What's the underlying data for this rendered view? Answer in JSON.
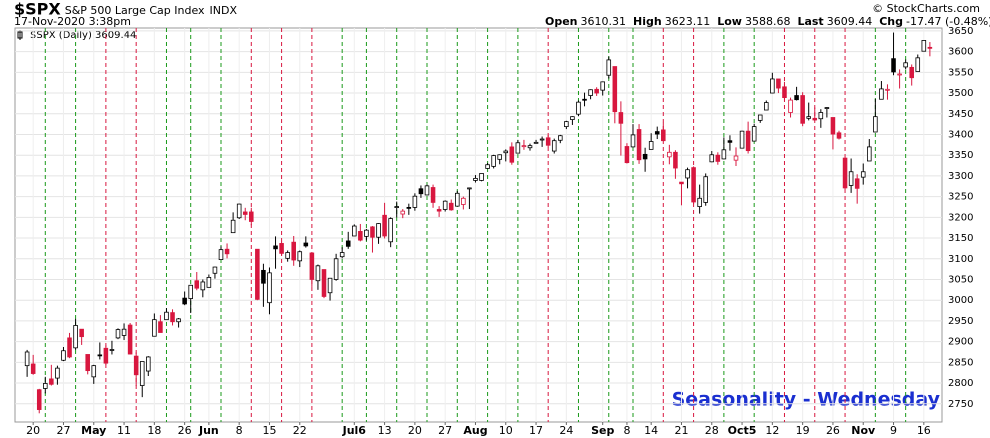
{
  "chart_data": {
    "type": "candlestick",
    "symbol": "$SPX",
    "name": "S&P 500 Large Cap Index",
    "exchange": "INDX",
    "timestamp": "17-Nov-2020 3:38pm",
    "quote": [
      {
        "label": "Open",
        "value": "3610.31"
      },
      {
        "label": "High",
        "value": "3623.11"
      },
      {
        "label": "Low",
        "value": "3588.68"
      },
      {
        "label": "Last",
        "value": "3609.44"
      },
      {
        "label": "Chg",
        "value": "-17.47 (-0.48%)"
      }
    ],
    "credit": "© StockCharts.com",
    "legend": "$SPX (Daily) 3609.44",
    "annotation": "Seasonality - Wednesday",
    "ylim": [
      2706,
      3657
    ],
    "yticks": [
      2750,
      2800,
      2850,
      2900,
      2950,
      3000,
      3050,
      3100,
      3150,
      3200,
      3250,
      3300,
      3350,
      3400,
      3450,
      3500,
      3550,
      3600,
      3650
    ],
    "xlim": [
      -2,
      151
    ],
    "xticks": [
      {
        "value": 1,
        "label": "20"
      },
      {
        "value": 6,
        "label": "27"
      },
      {
        "value": 11,
        "label": "May"
      },
      {
        "value": 16,
        "label": "11"
      },
      {
        "value": 21,
        "label": "18"
      },
      {
        "value": 26,
        "label": "26"
      },
      {
        "value": 30,
        "label": "Jun"
      },
      {
        "value": 35,
        "label": "8"
      },
      {
        "value": 40,
        "label": "15"
      },
      {
        "value": 45,
        "label": "22"
      },
      {
        "value": 54,
        "label": "Jul6"
      },
      {
        "value": 59,
        "label": "13"
      },
      {
        "value": 64,
        "label": "20"
      },
      {
        "value": 69,
        "label": "27"
      },
      {
        "value": 74,
        "label": "Aug"
      },
      {
        "value": 79,
        "label": "10"
      },
      {
        "value": 84,
        "label": "17"
      },
      {
        "value": 89,
        "label": "24"
      },
      {
        "value": 95,
        "label": "Sep"
      },
      {
        "value": 99,
        "label": "8"
      },
      {
        "value": 103,
        "label": "14"
      },
      {
        "value": 108,
        "label": "21"
      },
      {
        "value": 113,
        "label": "28"
      },
      {
        "value": 118,
        "label": "Oct5"
      },
      {
        "value": 123,
        "label": "12"
      },
      {
        "value": 128,
        "label": "19"
      },
      {
        "value": 133,
        "label": "26"
      },
      {
        "value": 138,
        "label": "Nov"
      },
      {
        "value": 143,
        "label": "9"
      },
      {
        "value": 148,
        "label": "16"
      }
    ],
    "vlines": [
      3,
      8,
      13,
      18,
      23,
      27,
      32,
      37,
      42,
      47,
      52,
      56,
      61,
      66,
      71,
      76,
      81,
      86,
      91,
      96,
      100,
      105,
      110,
      115,
      120,
      125,
      130,
      135,
      140,
      145
    ],
    "ohlc": [
      [
        2842,
        2880,
        2815,
        2875
      ],
      [
        2846,
        2868,
        2820,
        2823
      ],
      [
        2784,
        2786,
        2727,
        2736
      ],
      [
        2787,
        2815,
        2775,
        2799
      ],
      [
        2810,
        2844,
        2794,
        2797
      ],
      [
        2812,
        2842,
        2796,
        2836
      ],
      [
        2855,
        2887,
        2853,
        2878
      ],
      [
        2909,
        2921,
        2860,
        2863
      ],
      [
        2885,
        2955,
        2880,
        2939
      ],
      [
        2930,
        2930,
        2892,
        2912
      ],
      [
        2869,
        2869,
        2821,
        2830
      ],
      [
        2815,
        2844,
        2798,
        2842
      ],
      [
        2868,
        2898,
        2857,
        2868
      ],
      [
        2884,
        2891,
        2844,
        2848
      ],
      [
        2879,
        2902,
        2869,
        2881
      ],
      [
        2909,
        2932,
        2906,
        2929
      ],
      [
        2915,
        2944,
        2904,
        2930
      ],
      [
        2940,
        2945,
        2869,
        2870
      ],
      [
        2865,
        2874,
        2793,
        2820
      ],
      [
        2794,
        2852,
        2766,
        2852
      ],
      [
        2829,
        2865,
        2817,
        2863
      ],
      [
        2913,
        2968,
        2913,
        2953
      ],
      [
        2948,
        2964,
        2922,
        2922
      ],
      [
        2953,
        2981,
        2953,
        2971
      ],
      [
        2970,
        2978,
        2939,
        2948
      ],
      [
        2948,
        2957,
        2934,
        2955
      ],
      [
        3005,
        3021,
        2988,
        2991
      ],
      [
        3004,
        3037,
        2969,
        3036
      ],
      [
        3047,
        3068,
        3024,
        3029
      ],
      [
        3025,
        3050,
        3007,
        3044
      ],
      [
        3031,
        3062,
        3031,
        3055
      ],
      [
        3065,
        3081,
        3052,
        3080
      ],
      [
        3098,
        3130,
        3098,
        3122
      ],
      [
        3123,
        3137,
        3101,
        3112
      ],
      [
        3163,
        3212,
        3163,
        3193
      ],
      [
        3199,
        3233,
        3196,
        3232
      ],
      [
        3213,
        3223,
        3193,
        3207
      ],
      [
        3213,
        3223,
        3181,
        3190
      ],
      [
        3123,
        3123,
        3000,
        3002
      ],
      [
        3072,
        3088,
        2984,
        3041
      ],
      [
        2994,
        3079,
        2966,
        3066
      ],
      [
        3131,
        3154,
        3076,
        3124
      ],
      [
        3137,
        3141,
        3108,
        3113
      ],
      [
        3101,
        3120,
        3093,
        3115
      ],
      [
        3140,
        3155,
        3083,
        3097
      ],
      [
        3095,
        3120,
        3080,
        3117
      ],
      [
        3138,
        3154,
        3127,
        3131
      ],
      [
        3114,
        3115,
        3032,
        3050
      ],
      [
        3047,
        3086,
        3025,
        3083
      ],
      [
        3074,
        3074,
        3005,
        3009
      ],
      [
        3018,
        3053,
        2999,
        3053
      ],
      [
        3050,
        3112,
        3047,
        3100
      ],
      [
        3105,
        3128,
        3101,
        3115
      ],
      [
        3143,
        3165,
        3124,
        3130
      ],
      [
        3155,
        3183,
        3155,
        3179
      ],
      [
        3166,
        3184,
        3142,
        3145
      ],
      [
        3154,
        3172,
        3144,
        3169
      ],
      [
        3177,
        3179,
        3115,
        3152
      ],
      [
        3152,
        3186,
        3136,
        3185
      ],
      [
        3205,
        3235,
        3149,
        3155
      ],
      [
        3141,
        3200,
        3128,
        3197
      ],
      [
        3225,
        3238,
        3200,
        3226
      ],
      [
        3208,
        3220,
        3198,
        3215
      ],
      [
        3224,
        3233,
        3206,
        3224
      ],
      [
        3224,
        3258,
        3216,
        3251
      ],
      [
        3269,
        3277,
        3247,
        3257
      ],
      [
        3254,
        3279,
        3253,
        3276
      ],
      [
        3272,
        3279,
        3223,
        3236
      ],
      [
        3219,
        3227,
        3201,
        3215
      ],
      [
        3219,
        3241,
        3214,
        3239
      ],
      [
        3234,
        3243,
        3216,
        3218
      ],
      [
        3227,
        3264,
        3227,
        3258
      ],
      [
        3231,
        3250,
        3219,
        3246
      ],
      [
        3270,
        3272,
        3220,
        3271
      ],
      [
        3289,
        3302,
        3284,
        3294
      ],
      [
        3289,
        3306,
        3287,
        3306
      ],
      [
        3318,
        3331,
        3317,
        3327
      ],
      [
        3323,
        3351,
        3318,
        3349
      ],
      [
        3340,
        3352,
        3328,
        3351
      ],
      [
        3356,
        3364,
        3335,
        3360
      ],
      [
        3370,
        3381,
        3327,
        3333
      ],
      [
        3355,
        3387,
        3355,
        3380
      ],
      [
        3372,
        3387,
        3363,
        3373
      ],
      [
        3368,
        3378,
        3361,
        3373
      ],
      [
        3380,
        3387,
        3379,
        3381
      ],
      [
        3388,
        3395,
        3370,
        3389
      ],
      [
        3392,
        3399,
        3369,
        3374
      ],
      [
        3360,
        3390,
        3354,
        3385
      ],
      [
        3386,
        3399,
        3379,
        3397
      ],
      [
        3419,
        3433,
        3413,
        3431
      ],
      [
        3436,
        3444,
        3423,
        3443
      ],
      [
        3449,
        3482,
        3444,
        3478
      ],
      [
        3485,
        3501,
        3468,
        3484
      ],
      [
        3494,
        3509,
        3485,
        3508
      ],
      [
        3509,
        3514,
        3493,
        3500
      ],
      [
        3507,
        3528,
        3494,
        3527
      ],
      [
        3543,
        3588,
        3535,
        3580
      ],
      [
        3564,
        3564,
        3427,
        3455
      ],
      [
        3453,
        3480,
        3349,
        3427
      ],
      [
        3371,
        3379,
        3330,
        3332
      ],
      [
        3370,
        3425,
        3369,
        3399
      ],
      [
        3412,
        3425,
        3329,
        3339
      ],
      [
        3352,
        3368,
        3310,
        3341
      ],
      [
        3364,
        3403,
        3364,
        3383
      ],
      [
        3407,
        3419,
        3389,
        3401
      ],
      [
        3411,
        3428,
        3384,
        3385
      ],
      [
        3346,
        3375,
        3328,
        3357
      ],
      [
        3357,
        3362,
        3293,
        3319
      ],
      [
        3285,
        3285,
        3229,
        3281
      ],
      [
        3295,
        3320,
        3270,
        3315
      ],
      [
        3320,
        3323,
        3232,
        3237
      ],
      [
        3226,
        3279,
        3209,
        3246
      ],
      [
        3236,
        3306,
        3228,
        3298
      ],
      [
        3334,
        3360,
        3333,
        3351
      ],
      [
        3350,
        3357,
        3327,
        3335
      ],
      [
        3341,
        3393,
        3340,
        3363
      ],
      [
        3385,
        3398,
        3361,
        3381
      ],
      [
        3338,
        3369,
        3324,
        3348
      ],
      [
        3367,
        3409,
        3367,
        3408
      ],
      [
        3408,
        3431,
        3354,
        3361
      ],
      [
        3384,
        3426,
        3384,
        3419
      ],
      [
        3434,
        3447,
        3428,
        3447
      ],
      [
        3459,
        3482,
        3459,
        3477
      ],
      [
        3500,
        3549,
        3499,
        3534
      ],
      [
        3534,
        3534,
        3500,
        3512
      ],
      [
        3515,
        3527,
        3481,
        3489
      ],
      [
        3453,
        3489,
        3441,
        3483
      ],
      [
        3494,
        3515,
        3482,
        3484
      ],
      [
        3494,
        3502,
        3420,
        3427
      ],
      [
        3439,
        3477,
        3434,
        3443
      ],
      [
        3439,
        3465,
        3433,
        3435
      ],
      [
        3438,
        3461,
        3416,
        3453
      ],
      [
        3464,
        3466,
        3441,
        3465
      ],
      [
        3441,
        3441,
        3364,
        3401
      ],
      [
        3404,
        3409,
        3388,
        3391
      ],
      [
        3343,
        3343,
        3268,
        3271
      ],
      [
        3277,
        3342,
        3259,
        3310
      ],
      [
        3293,
        3304,
        3233,
        3270
      ],
      [
        3297,
        3330,
        3279,
        3310
      ],
      [
        3336,
        3389,
        3336,
        3370
      ],
      [
        3406,
        3486,
        3405,
        3443
      ],
      [
        3485,
        3529,
        3485,
        3510
      ],
      [
        3508,
        3521,
        3484,
        3509
      ],
      [
        3583,
        3646,
        3543,
        3551
      ],
      [
        3544,
        3557,
        3511,
        3546
      ],
      [
        3563,
        3581,
        3557,
        3573
      ],
      [
        3562,
        3569,
        3518,
        3537
      ],
      [
        3552,
        3593,
        3552,
        3585
      ],
      [
        3601,
        3628,
        3601,
        3627
      ],
      [
        3610.31,
        3623.11,
        3588.68,
        3609.44
      ]
    ],
    "up_color": "#000000",
    "down_color": "#d8173f",
    "up_line_color": "#1a9a1a",
    "down_line_color": "#d8173f"
  }
}
